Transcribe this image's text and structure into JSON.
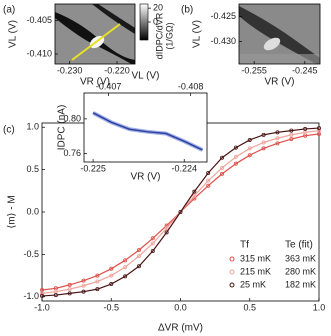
{
  "chart_data": [
    {
      "type": "map",
      "panel_label": "(a)",
      "xlabel": "VR (V)",
      "ylabel": "VL (V)",
      "xlim": [
        -0.2331,
        -0.2162
      ],
      "ylim": [
        -0.4115,
        -0.4025
      ],
      "xticks": [
        {
          "value": -0.23,
          "label": "-0.230"
        },
        {
          "value": -0.22,
          "label": "-0.220"
        }
      ],
      "yticks": [
        -0.405,
        {
          "value": -0.41,
          "label": "-0.410"
        }
      ],
      "clim": [
        -26,
        26
      ],
      "cticks": [
        0,
        20
      ],
      "colorbar_label": [
        "dIDPC/dVR",
        "(1/GΩ)"
      ]
    },
    {
      "type": "map",
      "panel_label": "(b)",
      "xlabel": "VR (V)",
      "ylabel": "VL (V)",
      "xlim": [
        -0.258,
        -0.242
      ],
      "ylim": [
        -0.4345,
        -0.4225
      ],
      "xticks": [
        -0.255,
        -0.245
      ],
      "yticks": [
        -0.425,
        {
          "value": -0.43,
          "label": "-0.430"
        }
      ]
    },
    {
      "type": "line",
      "panel_label": "(c)",
      "xlabel": "ΔVR (mV)",
      "ylabel": "⟨m⟩ - M",
      "xlim": [
        -1.0,
        1.0
      ],
      "ylim": [
        -1.05,
        1.05
      ],
      "xticks": [
        {
          "value": -1,
          "label": "-1.0"
        },
        {
          "value": -0.5,
          "label": "-0.5"
        },
        {
          "value": 0,
          "label": "0.0"
        },
        {
          "value": 0.5,
          "label": "0.5"
        },
        {
          "value": 1,
          "label": "1.0"
        }
      ],
      "yticks": [
        {
          "value": -1,
          "label": "-1.0"
        },
        {
          "value": -0.5,
          "label": "-0.5"
        },
        {
          "value": 0,
          "label": "0.0"
        },
        {
          "value": 0.5,
          "label": "0.5"
        },
        {
          "value": 1,
          "label": "1.0"
        }
      ],
      "legend_title": "Tf",
      "fit_title": "Te (fit)",
      "x": [
        -1.0,
        -0.9,
        -0.8,
        -0.7,
        -0.6,
        -0.5,
        -0.4,
        -0.3,
        -0.2,
        -0.1,
        0.0,
        0.1,
        0.2,
        0.3,
        0.4,
        0.5,
        0.6,
        0.7,
        0.8,
        0.9,
        1.0
      ],
      "series": [
        {
          "name": "315 mK",
          "fit": "363 mK",
          "color": "#e0504a",
          "values": [
            -0.92,
            -0.9,
            -0.86,
            -0.81,
            -0.75,
            -0.67,
            -0.57,
            -0.45,
            -0.31,
            -0.16,
            0,
            0.16,
            0.31,
            0.45,
            0.57,
            0.67,
            0.75,
            0.81,
            0.86,
            0.9,
            0.92
          ]
        },
        {
          "name": "215 mK",
          "fit": "280 mK",
          "color": "#f0a49c",
          "values": [
            -0.96,
            -0.94,
            -0.91,
            -0.87,
            -0.82,
            -0.75,
            -0.65,
            -0.52,
            -0.37,
            -0.19,
            0,
            0.19,
            0.37,
            0.52,
            0.65,
            0.75,
            0.82,
            0.87,
            0.91,
            0.94,
            0.96
          ]
        },
        {
          "name": "25 mK",
          "fit": "182 mK",
          "color": "#4a1414",
          "values": [
            -0.99,
            -0.98,
            -0.96,
            -0.94,
            -0.91,
            -0.85,
            -0.76,
            -0.64,
            -0.46,
            -0.24,
            0,
            0.24,
            0.46,
            0.64,
            0.76,
            0.85,
            0.91,
            0.94,
            0.96,
            0.98,
            0.99
          ]
        }
      ]
    },
    {
      "type": "line",
      "xlabel": "VR (V)",
      "ylabel": "IDPC (nA)",
      "x2label": "VL (V)",
      "xlim": [
        -0.2251,
        -0.22375
      ],
      "ylim": [
        0.75,
        0.83
      ],
      "x2lim": [
        -0.4067,
        -0.4082
      ],
      "xticks": [
        -0.225,
        -0.224
      ],
      "yticks": [
        {
          "value": 0.8,
          "label": "0.80"
        },
        0.76
      ],
      "x2ticks": [
        -0.407,
        -0.408
      ],
      "x": [
        -0.225,
        -0.2248,
        -0.2246,
        -0.2244,
        -0.2242,
        -0.224,
        -0.2238
      ],
      "series": [
        {
          "color": "#2f3f9e",
          "values": [
            0.807,
            0.796,
            0.788,
            0.785,
            0.783,
            0.774,
            0.764
          ]
        }
      ]
    }
  ]
}
